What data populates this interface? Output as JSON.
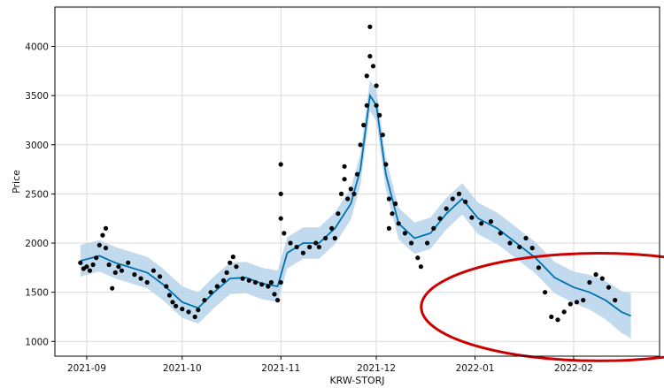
{
  "chart_data": {
    "type": "scatter",
    "title": "",
    "xlabel": "KRW-STORJ",
    "ylabel": "Price",
    "xlim": [
      "2021-08-22",
      "2022-02-28"
    ],
    "ylim": [
      850,
      4400
    ],
    "grid": true,
    "x_ticks": [
      "2021-09-01",
      "2021-10-01",
      "2021-11-01",
      "2021-12-01",
      "2022-01-01",
      "2022-02-01"
    ],
    "x_tick_labels": [
      "2021-09",
      "2021-10",
      "2021-11",
      "2021-12",
      "2022-01",
      "2022-02"
    ],
    "y_ticks": [
      1000,
      1500,
      2000,
      2500,
      3000,
      3500,
      4000
    ],
    "colors": {
      "points": "#000000",
      "forecast_line": "#0072B2",
      "uncertainty_band": "#b7d4ea",
      "highlight_circle": "#cc0000",
      "grid": "#d9d9d9"
    },
    "series": [
      {
        "kind": "observed",
        "marker": "dot",
        "points": [
          [
            "2021-08-30",
            1800
          ],
          [
            "2021-08-31",
            1740
          ],
          [
            "2021-09-01",
            1760
          ],
          [
            "2021-09-02",
            1720
          ],
          [
            "2021-09-03",
            1780
          ],
          [
            "2021-09-04",
            1850
          ],
          [
            "2021-09-05",
            1980
          ],
          [
            "2021-09-06",
            2080
          ],
          [
            "2021-09-07",
            2150
          ],
          [
            "2021-09-07",
            1950
          ],
          [
            "2021-09-08",
            1780
          ],
          [
            "2021-09-09",
            1540
          ],
          [
            "2021-09-10",
            1700
          ],
          [
            "2021-09-11",
            1760
          ],
          [
            "2021-09-12",
            1720
          ],
          [
            "2021-09-14",
            1800
          ],
          [
            "2021-09-16",
            1680
          ],
          [
            "2021-09-18",
            1640
          ],
          [
            "2021-09-20",
            1600
          ],
          [
            "2021-09-22",
            1720
          ],
          [
            "2021-09-24",
            1660
          ],
          [
            "2021-09-26",
            1560
          ],
          [
            "2021-09-27",
            1470
          ],
          [
            "2021-09-28",
            1400
          ],
          [
            "2021-09-29",
            1360
          ],
          [
            "2021-10-01",
            1330
          ],
          [
            "2021-10-03",
            1300
          ],
          [
            "2021-10-05",
            1250
          ],
          [
            "2021-10-06",
            1320
          ],
          [
            "2021-10-08",
            1420
          ],
          [
            "2021-10-10",
            1500
          ],
          [
            "2021-10-12",
            1560
          ],
          [
            "2021-10-14",
            1620
          ],
          [
            "2021-10-15",
            1700
          ],
          [
            "2021-10-16",
            1800
          ],
          [
            "2021-10-17",
            1860
          ],
          [
            "2021-10-18",
            1760
          ],
          [
            "2021-10-20",
            1640
          ],
          [
            "2021-10-22",
            1620
          ],
          [
            "2021-10-24",
            1600
          ],
          [
            "2021-10-26",
            1580
          ],
          [
            "2021-10-28",
            1560
          ],
          [
            "2021-10-29",
            1600
          ],
          [
            "2021-10-30",
            1480
          ],
          [
            "2021-10-31",
            1420
          ],
          [
            "2021-11-01",
            1600
          ],
          [
            "2021-11-01",
            2250
          ],
          [
            "2021-11-01",
            2500
          ],
          [
            "2021-11-01",
            2800
          ],
          [
            "2021-11-02",
            2100
          ],
          [
            "2021-11-04",
            2000
          ],
          [
            "2021-11-06",
            1960
          ],
          [
            "2021-11-08",
            1900
          ],
          [
            "2021-11-10",
            1960
          ],
          [
            "2021-11-12",
            2000
          ],
          [
            "2021-11-13",
            1960
          ],
          [
            "2021-11-15",
            2050
          ],
          [
            "2021-11-17",
            2150
          ],
          [
            "2021-11-18",
            2050
          ],
          [
            "2021-11-19",
            2300
          ],
          [
            "2021-11-20",
            2500
          ],
          [
            "2021-11-21",
            2650
          ],
          [
            "2021-11-21",
            2780
          ],
          [
            "2021-11-22",
            2450
          ],
          [
            "2021-11-23",
            2550
          ],
          [
            "2021-11-24",
            2500
          ],
          [
            "2021-11-25",
            2700
          ],
          [
            "2021-11-26",
            3000
          ],
          [
            "2021-11-27",
            3200
          ],
          [
            "2021-11-28",
            3400
          ],
          [
            "2021-11-28",
            3700
          ],
          [
            "2021-11-29",
            3900
          ],
          [
            "2021-11-29",
            4200
          ],
          [
            "2021-11-30",
            3800
          ],
          [
            "2021-12-01",
            3600
          ],
          [
            "2021-12-01",
            3400
          ],
          [
            "2021-12-02",
            3300
          ],
          [
            "2021-12-03",
            3100
          ],
          [
            "2021-12-04",
            2800
          ],
          [
            "2021-12-05",
            2450
          ],
          [
            "2021-12-05",
            2150
          ],
          [
            "2021-12-06",
            2300
          ],
          [
            "2021-12-07",
            2400
          ],
          [
            "2021-12-08",
            2200
          ],
          [
            "2021-12-10",
            2100
          ],
          [
            "2021-12-12",
            2000
          ],
          [
            "2021-12-14",
            1850
          ],
          [
            "2021-12-15",
            1760
          ],
          [
            "2021-12-17",
            2000
          ],
          [
            "2021-12-19",
            2150
          ],
          [
            "2021-12-21",
            2250
          ],
          [
            "2021-12-23",
            2350
          ],
          [
            "2021-12-25",
            2450
          ],
          [
            "2021-12-27",
            2500
          ],
          [
            "2021-12-29",
            2420
          ],
          [
            "2021-12-31",
            2260
          ],
          [
            "2022-01-03",
            2200
          ],
          [
            "2022-01-06",
            2220
          ],
          [
            "2022-01-09",
            2100
          ],
          [
            "2022-01-12",
            2000
          ],
          [
            "2022-01-15",
            1960
          ],
          [
            "2022-01-17",
            2050
          ],
          [
            "2022-01-19",
            1950
          ],
          [
            "2022-01-21",
            1750
          ],
          [
            "2022-01-23",
            1500
          ],
          [
            "2022-01-25",
            1250
          ],
          [
            "2022-01-27",
            1220
          ],
          [
            "2022-01-29",
            1300
          ],
          [
            "2022-01-31",
            1380
          ],
          [
            "2022-02-02",
            1400
          ],
          [
            "2022-02-04",
            1420
          ],
          [
            "2022-02-06",
            1600
          ],
          [
            "2022-02-08",
            1680
          ],
          [
            "2022-02-10",
            1640
          ],
          [
            "2022-02-12",
            1550
          ],
          [
            "2022-02-14",
            1420
          ]
        ]
      },
      {
        "kind": "forecast",
        "line": [
          [
            "2021-08-30",
            1820
          ],
          [
            "2021-09-05",
            1870
          ],
          [
            "2021-09-10",
            1800
          ],
          [
            "2021-09-15",
            1750
          ],
          [
            "2021-09-20",
            1700
          ],
          [
            "2021-09-25",
            1580
          ],
          [
            "2021-10-01",
            1400
          ],
          [
            "2021-10-06",
            1340
          ],
          [
            "2021-10-11",
            1500
          ],
          [
            "2021-10-16",
            1640
          ],
          [
            "2021-10-21",
            1650
          ],
          [
            "2021-10-26",
            1590
          ],
          [
            "2021-10-31",
            1560
          ],
          [
            "2021-11-03",
            1900
          ],
          [
            "2021-11-08",
            2000
          ],
          [
            "2021-11-13",
            2000
          ],
          [
            "2021-11-18",
            2150
          ],
          [
            "2021-11-23",
            2400
          ],
          [
            "2021-11-26",
            2750
          ],
          [
            "2021-11-29",
            3500
          ],
          [
            "2021-12-01",
            3400
          ],
          [
            "2021-12-04",
            2700
          ],
          [
            "2021-12-08",
            2200
          ],
          [
            "2021-12-13",
            2050
          ],
          [
            "2021-12-18",
            2100
          ],
          [
            "2021-12-23",
            2300
          ],
          [
            "2021-12-28",
            2450
          ],
          [
            "2022-01-02",
            2250
          ],
          [
            "2022-01-08",
            2150
          ],
          [
            "2022-01-14",
            2000
          ],
          [
            "2022-01-20",
            1850
          ],
          [
            "2022-01-26",
            1650
          ],
          [
            "2022-02-01",
            1550
          ],
          [
            "2022-02-06",
            1500
          ],
          [
            "2022-02-11",
            1420
          ],
          [
            "2022-02-16",
            1300
          ],
          [
            "2022-02-19",
            1260
          ]
        ],
        "band_halfwidth": 160,
        "band_halfwidth_end": 230
      }
    ],
    "annotations": [
      {
        "type": "ellipse",
        "center": [
          "2022-02-09",
          1350
        ],
        "rx_days": 13,
        "ry_value": 730,
        "color": "#cc0000"
      }
    ]
  }
}
